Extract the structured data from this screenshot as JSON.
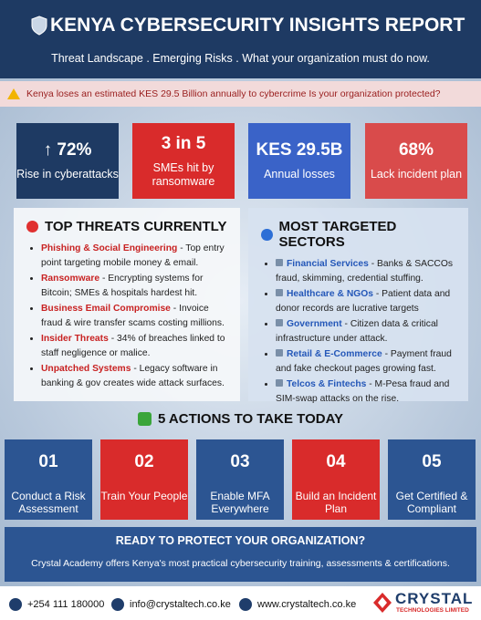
{
  "header": {
    "title": "KENYA CYBERSECURITY INSIGHTS REPORT",
    "subtitle": "Threat Landscape . Emerging Risks . What your organization must do now."
  },
  "alert": "Kenya loses an estimated KES 29.5 Billion annually to cybercrime Is your organization protected?",
  "stats": [
    {
      "value": "↑ 72%",
      "label": "Rise in cyberattacks"
    },
    {
      "value": "3 in 5",
      "label": "SMEs hit by ransomware"
    },
    {
      "value": "KES 29.5B",
      "label": "Annual losses"
    },
    {
      "value": "68%",
      "label": "Lack incident plan"
    }
  ],
  "threats": {
    "title": "TOP THREATS CURRENTLY",
    "items": [
      {
        "name": "Phishing & Social Engineering",
        "text": "- Top entry point  targeting mobile money & email."
      },
      {
        "name": "Ransomware",
        "text": "- Encrypting systems for Bitcoin; SMEs & hospitals hardest hit."
      },
      {
        "name": "Business Email Compromise",
        "text": "- Invoice fraud & wire transfer scams costing millions."
      },
      {
        "name": "Insider Threats",
        "text": "- 34% of breaches linked to staff negligence or malice."
      },
      {
        "name": "Unpatched Systems",
        "text": "- Legacy software in banking & gov creates wide attack surfaces."
      }
    ]
  },
  "sectors": {
    "title": "MOST TARGETED SECTORS",
    "items": [
      {
        "name": "Financial Services",
        "text": "- Banks & SACCOs fraud, skimming, credential stuffing."
      },
      {
        "name": "Healthcare & NGOs",
        "text": "- Patient data and donor records are lucrative targets"
      },
      {
        "name": "Government",
        "text": "- Citizen data & critical infrastructure under attack."
      },
      {
        "name": "Retail & E-Commerce",
        "text": "- Payment fraud and fake checkout pages growing fast."
      },
      {
        "name": "Telcos & Fintechs",
        "text": "- M-Pesa fraud and SIM-swap attacks on the rise."
      }
    ]
  },
  "actions": {
    "title": "5 ACTIONS TO TAKE TODAY",
    "items": [
      {
        "number": "01",
        "label": "Conduct a Risk Assessment"
      },
      {
        "number": "02",
        "label": "Train Your People"
      },
      {
        "number": "03",
        "label": "Enable MFA Everywhere"
      },
      {
        "number": "04",
        "label": "Build an Incident Plan"
      },
      {
        "number": "05",
        "label": "Get Certified & Compliant"
      }
    ]
  },
  "cta": {
    "title": "READY TO PROTECT YOUR ORGANIZATION?",
    "text": "Crystal Academy offers Kenya's most practical cybersecurity training, assessments & certifications."
  },
  "footer": {
    "phone": "+254 111 180000",
    "email": "info@crystaltech.co.ke",
    "website": "www.crystaltech.co.ke",
    "brand": "CRYSTAL",
    "brand_sub": "TECHNOLOGIES LIMITED"
  }
}
